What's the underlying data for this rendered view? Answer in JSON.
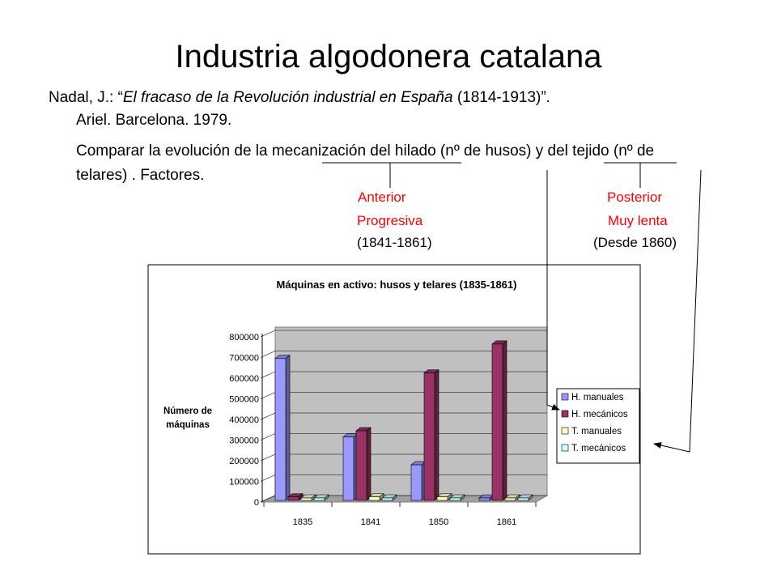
{
  "slide": {
    "title": "Industria algodonera catalana",
    "reference": {
      "prefix": "Nadal, J.: “",
      "book_title": "El fracaso de la Revolución industrial en España",
      "suffix": " (1814-1913)”.",
      "line2": "Ariel. Barcelona. 1979."
    },
    "compare": {
      "line1": "Comparar la evolución de la mecanización del  hilado (nº de husos) y del tejido (nº de",
      "line2": "telares) . Factores."
    },
    "hilado": {
      "label1": "Anterior",
      "label2": "Progresiva",
      "period": "(1841-1861)"
    },
    "tejido": {
      "label1": "Posterior",
      "label2": "Muy lenta",
      "period": "(Desde 1860)"
    }
  },
  "colors": {
    "series": [
      "#9999ff",
      "#993366",
      "#ffffcc",
      "#ccffff"
    ],
    "annotation": "#ff0000",
    "plot_wall": "#c0c0c0"
  },
  "chart_data": {
    "type": "bar",
    "title": "Máquinas en activo: husos y telares (1835-1861)",
    "ylabel": "Número de máquinas",
    "ylabel_lines": [
      "Número de",
      "máquinas"
    ],
    "xlabel": "",
    "categories": [
      "1835",
      "1841",
      "1850",
      "1861"
    ],
    "ylim": [
      0,
      800000
    ],
    "yticks": [
      0,
      100000,
      200000,
      300000,
      400000,
      500000,
      600000,
      700000,
      800000
    ],
    "grid": true,
    "legend_position": "right",
    "three_d": true,
    "series": [
      {
        "name": "H. manuales",
        "values": [
          695000,
          315000,
          180000,
          5000
        ]
      },
      {
        "name": "H. mecánicos",
        "values": [
          25000,
          345000,
          625000,
          765000
        ]
      },
      {
        "name": "T. manuales",
        "values": [
          0,
          25000,
          25000,
          10000
        ]
      },
      {
        "name": "T. mecánicos",
        "values": [
          0,
          5000,
          5000,
          10000
        ]
      }
    ]
  }
}
